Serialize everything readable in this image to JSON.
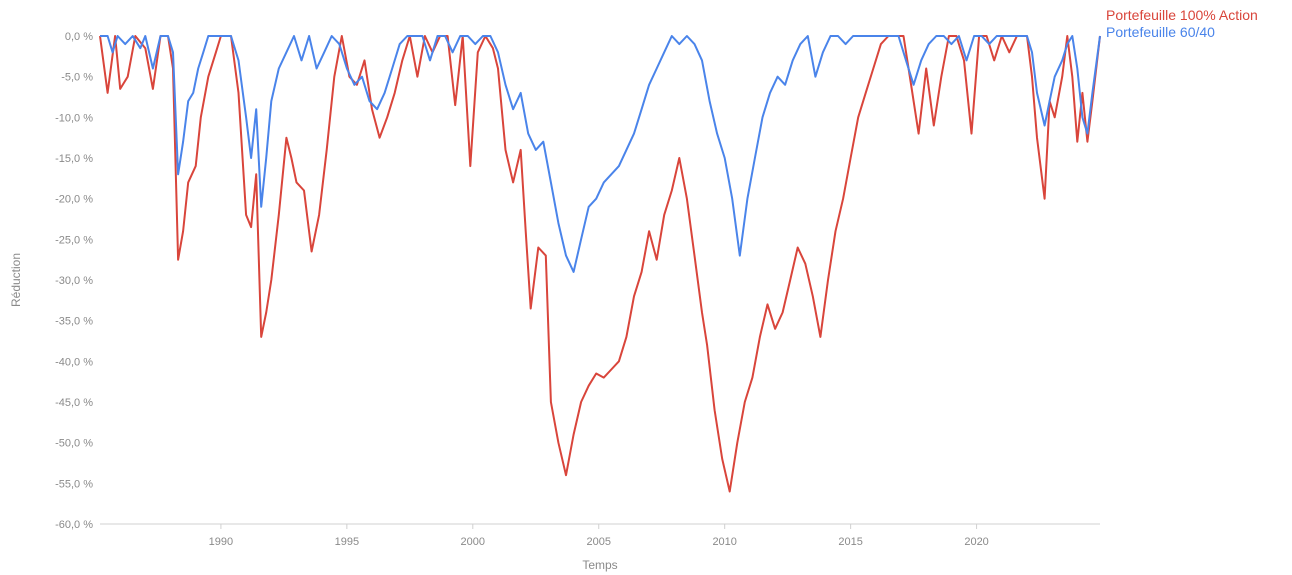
{
  "chart_data": {
    "type": "line",
    "title": "",
    "xlabel": "Temps",
    "ylabel": "Réduction",
    "xlim": [
      1985.2,
      2024.9
    ],
    "ylim": [
      -60,
      0
    ],
    "x_ticks": [
      {
        "value": 1990,
        "label": "1990"
      },
      {
        "value": 1995,
        "label": "1995"
      },
      {
        "value": 2000,
        "label": "2000"
      },
      {
        "value": 2005,
        "label": "2005"
      },
      {
        "value": 2010,
        "label": "2010"
      },
      {
        "value": 2015,
        "label": "2015"
      },
      {
        "value": 2020,
        "label": "2020"
      }
    ],
    "y_ticks": [
      {
        "value": 0,
        "label": "0,0 %"
      },
      {
        "value": -5,
        "label": "-5,0 %"
      },
      {
        "value": -10,
        "label": "-10,0 %"
      },
      {
        "value": -15,
        "label": "-15,0 %"
      },
      {
        "value": -20,
        "label": "-20,0 %"
      },
      {
        "value": -25,
        "label": "-25,0 %"
      },
      {
        "value": -30,
        "label": "-30,0 %"
      },
      {
        "value": -35,
        "label": "-35,0 %"
      },
      {
        "value": -40,
        "label": "-40,0 %"
      },
      {
        "value": -45,
        "label": "-45,0 %"
      },
      {
        "value": -50,
        "label": "-50,0 %"
      },
      {
        "value": -55,
        "label": "-55,0 %"
      },
      {
        "value": -60,
        "label": "-60,0 %"
      }
    ],
    "grid": false,
    "legend_position": "top-right",
    "series": [
      {
        "name": "Portefeuille 100% Action",
        "color": "#d9453b",
        "points": [
          [
            1985.2,
            0
          ],
          [
            1985.5,
            -7
          ],
          [
            1985.8,
            0
          ],
          [
            1986.0,
            -6.5
          ],
          [
            1986.3,
            -5
          ],
          [
            1986.6,
            0
          ],
          [
            1987.0,
            -1.5
          ],
          [
            1987.3,
            -6.5
          ],
          [
            1987.6,
            0
          ],
          [
            1987.9,
            0
          ],
          [
            1988.1,
            -4
          ],
          [
            1988.3,
            -27.5
          ],
          [
            1988.5,
            -24
          ],
          [
            1988.7,
            -18
          ],
          [
            1989.0,
            -16
          ],
          [
            1989.2,
            -10
          ],
          [
            1989.5,
            -5
          ],
          [
            1989.8,
            -2
          ],
          [
            1990.0,
            0
          ],
          [
            1990.4,
            0
          ],
          [
            1990.7,
            -7
          ],
          [
            1991.0,
            -22
          ],
          [
            1991.2,
            -23.5
          ],
          [
            1991.4,
            -17
          ],
          [
            1991.6,
            -37
          ],
          [
            1991.8,
            -34
          ],
          [
            1992.0,
            -30
          ],
          [
            1992.3,
            -22
          ],
          [
            1992.6,
            -12.5
          ],
          [
            1992.8,
            -15
          ],
          [
            1993.0,
            -18
          ],
          [
            1993.3,
            -19
          ],
          [
            1993.6,
            -26.5
          ],
          [
            1993.9,
            -22
          ],
          [
            1994.2,
            -14
          ],
          [
            1994.5,
            -5
          ],
          [
            1994.8,
            0
          ],
          [
            1995.1,
            -5
          ],
          [
            1995.4,
            -6
          ],
          [
            1995.7,
            -3
          ],
          [
            1996.0,
            -9
          ],
          [
            1996.3,
            -12.5
          ],
          [
            1996.6,
            -10
          ],
          [
            1996.9,
            -7
          ],
          [
            1997.2,
            -3
          ],
          [
            1997.5,
            0
          ],
          [
            1997.8,
            -5
          ],
          [
            1998.1,
            0
          ],
          [
            1998.4,
            -2
          ],
          [
            1998.7,
            0
          ],
          [
            1999.0,
            0
          ],
          [
            1999.3,
            -8.5
          ],
          [
            1999.6,
            0
          ],
          [
            1999.9,
            -16
          ],
          [
            2000.2,
            -2
          ],
          [
            2000.5,
            0
          ],
          [
            2000.8,
            -1.5
          ],
          [
            2001.0,
            -4
          ],
          [
            2001.3,
            -14
          ],
          [
            2001.6,
            -18
          ],
          [
            2001.9,
            -14
          ],
          [
            2002.1,
            -24
          ],
          [
            2002.3,
            -33.5
          ],
          [
            2002.6,
            -26
          ],
          [
            2002.9,
            -27
          ],
          [
            2003.1,
            -45
          ],
          [
            2003.4,
            -50
          ],
          [
            2003.7,
            -54
          ],
          [
            2004.0,
            -49
          ],
          [
            2004.3,
            -45
          ],
          [
            2004.6,
            -43
          ],
          [
            2004.9,
            -41.5
          ],
          [
            2005.2,
            -42
          ],
          [
            2005.5,
            -41
          ],
          [
            2005.8,
            -40
          ],
          [
            2006.1,
            -37
          ],
          [
            2006.4,
            -32
          ],
          [
            2006.7,
            -29
          ],
          [
            2007.0,
            -24
          ],
          [
            2007.3,
            -27.5
          ],
          [
            2007.6,
            -22
          ],
          [
            2007.9,
            -19
          ],
          [
            2008.2,
            -15
          ],
          [
            2008.5,
            -20
          ],
          [
            2008.8,
            -27
          ],
          [
            2009.1,
            -34
          ],
          [
            2009.3,
            -38
          ],
          [
            2009.6,
            -46
          ],
          [
            2009.9,
            -52
          ],
          [
            2010.2,
            -56
          ],
          [
            2010.5,
            -50
          ],
          [
            2010.8,
            -45
          ],
          [
            2011.1,
            -42
          ],
          [
            2011.4,
            -37
          ],
          [
            2011.7,
            -33
          ],
          [
            2012.0,
            -36
          ],
          [
            2012.3,
            -34
          ],
          [
            2012.6,
            -30
          ],
          [
            2012.9,
            -26
          ],
          [
            2013.2,
            -28
          ],
          [
            2013.5,
            -32
          ],
          [
            2013.8,
            -37
          ],
          [
            2014.1,
            -30
          ],
          [
            2014.4,
            -24
          ],
          [
            2014.7,
            -20
          ],
          [
            2015.0,
            -15
          ],
          [
            2015.3,
            -10
          ],
          [
            2015.6,
            -7
          ],
          [
            2015.9,
            -4
          ],
          [
            2016.2,
            -1
          ],
          [
            2016.5,
            0
          ],
          [
            2016.8,
            0
          ],
          [
            2017.1,
            0
          ],
          [
            2017.4,
            -6
          ],
          [
            2017.7,
            -12
          ],
          [
            2018.0,
            -4
          ],
          [
            2018.3,
            -11
          ],
          [
            2018.6,
            -5
          ],
          [
            2018.9,
            0
          ],
          [
            2019.2,
            0
          ],
          [
            2019.5,
            -3
          ],
          [
            2019.8,
            -12
          ],
          [
            2020.1,
            0
          ],
          [
            2020.4,
            0
          ],
          [
            2020.7,
            -3
          ],
          [
            2021.0,
            0
          ],
          [
            2021.3,
            -2
          ],
          [
            2021.6,
            0
          ],
          [
            2022.0,
            0
          ],
          [
            2022.2,
            -5
          ],
          [
            2022.4,
            -12.5
          ],
          [
            2022.7,
            -20
          ],
          [
            2022.9,
            -8
          ],
          [
            2023.1,
            -10
          ],
          [
            2023.4,
            -5
          ],
          [
            2023.6,
            0
          ],
          [
            2023.8,
            -5
          ],
          [
            2024.0,
            -13
          ],
          [
            2024.2,
            -7
          ],
          [
            2024.4,
            -13
          ],
          [
            2024.6,
            -8
          ],
          [
            2024.9,
            0
          ]
        ]
      },
      {
        "name": "Portefeuille 60/40",
        "color": "#4a84ea",
        "points": [
          [
            1985.2,
            0
          ],
          [
            1985.5,
            0
          ],
          [
            1985.7,
            -2
          ],
          [
            1985.9,
            0
          ],
          [
            1986.2,
            -1
          ],
          [
            1986.5,
            0
          ],
          [
            1986.8,
            -1.5
          ],
          [
            1987.0,
            0
          ],
          [
            1987.3,
            -4
          ],
          [
            1987.6,
            0
          ],
          [
            1987.9,
            0
          ],
          [
            1988.1,
            -2
          ],
          [
            1988.3,
            -17
          ],
          [
            1988.5,
            -13
          ],
          [
            1988.7,
            -8
          ],
          [
            1988.9,
            -7
          ],
          [
            1989.1,
            -4
          ],
          [
            1989.3,
            -2
          ],
          [
            1989.5,
            0
          ],
          [
            1989.8,
            0
          ],
          [
            1990.1,
            0
          ],
          [
            1990.4,
            0
          ],
          [
            1990.7,
            -3
          ],
          [
            1991.0,
            -10
          ],
          [
            1991.2,
            -15
          ],
          [
            1991.4,
            -9
          ],
          [
            1991.6,
            -21
          ],
          [
            1991.8,
            -15
          ],
          [
            1992.0,
            -8
          ],
          [
            1992.3,
            -4
          ],
          [
            1992.6,
            -2
          ],
          [
            1992.9,
            0
          ],
          [
            1993.2,
            -3
          ],
          [
            1993.5,
            0
          ],
          [
            1993.8,
            -4
          ],
          [
            1994.1,
            -2
          ],
          [
            1994.4,
            0
          ],
          [
            1994.7,
            -1
          ],
          [
            1995.0,
            -4
          ],
          [
            1995.3,
            -6
          ],
          [
            1995.6,
            -5
          ],
          [
            1995.9,
            -8
          ],
          [
            1996.2,
            -9
          ],
          [
            1996.5,
            -7
          ],
          [
            1996.8,
            -4
          ],
          [
            1997.1,
            -1
          ],
          [
            1997.4,
            0
          ],
          [
            1997.7,
            0
          ],
          [
            1998.0,
            0
          ],
          [
            1998.3,
            -3
          ],
          [
            1998.6,
            0
          ],
          [
            1998.9,
            0
          ],
          [
            1999.2,
            -2
          ],
          [
            1999.5,
            0
          ],
          [
            1999.8,
            0
          ],
          [
            2000.1,
            -1
          ],
          [
            2000.4,
            0
          ],
          [
            2000.7,
            0
          ],
          [
            2001.0,
            -2
          ],
          [
            2001.3,
            -6
          ],
          [
            2001.6,
            -9
          ],
          [
            2001.9,
            -7
          ],
          [
            2002.2,
            -12
          ],
          [
            2002.5,
            -14
          ],
          [
            2002.8,
            -13
          ],
          [
            2003.1,
            -18
          ],
          [
            2003.4,
            -23
          ],
          [
            2003.7,
            -27
          ],
          [
            2004.0,
            -29
          ],
          [
            2004.3,
            -25
          ],
          [
            2004.6,
            -21
          ],
          [
            2004.9,
            -20
          ],
          [
            2005.2,
            -18
          ],
          [
            2005.5,
            -17
          ],
          [
            2005.8,
            -16
          ],
          [
            2006.1,
            -14
          ],
          [
            2006.4,
            -12
          ],
          [
            2006.7,
            -9
          ],
          [
            2007.0,
            -6
          ],
          [
            2007.3,
            -4
          ],
          [
            2007.6,
            -2
          ],
          [
            2007.9,
            0
          ],
          [
            2008.2,
            -1
          ],
          [
            2008.5,
            0
          ],
          [
            2008.8,
            -1
          ],
          [
            2009.1,
            -3
          ],
          [
            2009.4,
            -8
          ],
          [
            2009.7,
            -12
          ],
          [
            2010.0,
            -15
          ],
          [
            2010.3,
            -20
          ],
          [
            2010.6,
            -27
          ],
          [
            2010.9,
            -20
          ],
          [
            2011.2,
            -15
          ],
          [
            2011.5,
            -10
          ],
          [
            2011.8,
            -7
          ],
          [
            2012.1,
            -5
          ],
          [
            2012.4,
            -6
          ],
          [
            2012.7,
            -3
          ],
          [
            2013.0,
            -1
          ],
          [
            2013.3,
            0
          ],
          [
            2013.6,
            -5
          ],
          [
            2013.9,
            -2
          ],
          [
            2014.2,
            0
          ],
          [
            2014.5,
            0
          ],
          [
            2014.8,
            -1
          ],
          [
            2015.1,
            0
          ],
          [
            2015.4,
            0
          ],
          [
            2015.7,
            0
          ],
          [
            2016.0,
            0
          ],
          [
            2016.3,
            0
          ],
          [
            2016.6,
            0
          ],
          [
            2016.9,
            0
          ],
          [
            2017.2,
            -3
          ],
          [
            2017.5,
            -6
          ],
          [
            2017.8,
            -3
          ],
          [
            2018.1,
            -1
          ],
          [
            2018.4,
            0
          ],
          [
            2018.7,
            0
          ],
          [
            2019.0,
            -1
          ],
          [
            2019.3,
            0
          ],
          [
            2019.6,
            -3
          ],
          [
            2019.9,
            0
          ],
          [
            2020.2,
            0
          ],
          [
            2020.5,
            -1
          ],
          [
            2020.8,
            0
          ],
          [
            2021.1,
            0
          ],
          [
            2021.4,
            0
          ],
          [
            2021.7,
            0
          ],
          [
            2022.0,
            0
          ],
          [
            2022.2,
            -2
          ],
          [
            2022.4,
            -7
          ],
          [
            2022.7,
            -11
          ],
          [
            2022.9,
            -8
          ],
          [
            2023.1,
            -5
          ],
          [
            2023.4,
            -3
          ],
          [
            2023.6,
            -1
          ],
          [
            2023.8,
            0
          ],
          [
            2024.0,
            -4
          ],
          [
            2024.2,
            -10
          ],
          [
            2024.4,
            -12
          ],
          [
            2024.6,
            -7
          ],
          [
            2024.9,
            0
          ]
        ]
      }
    ]
  }
}
